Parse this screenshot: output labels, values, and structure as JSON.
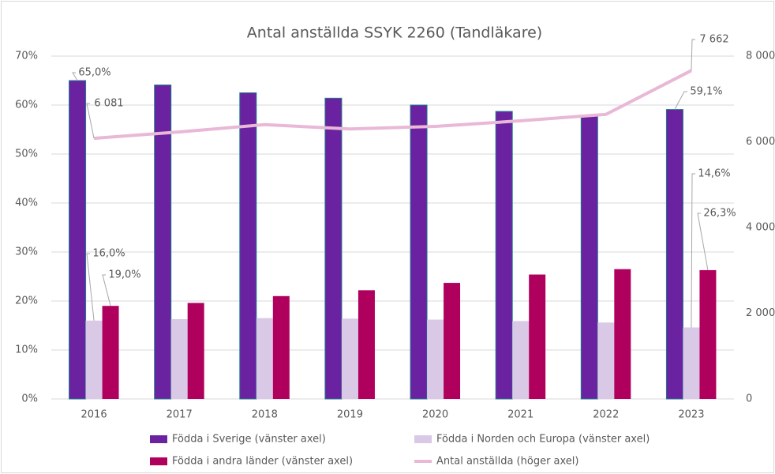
{
  "chart_data": {
    "type": "bar",
    "title": "Antal anställda SSYK 2260 (Tandläkare)",
    "categories": [
      "2016",
      "2017",
      "2018",
      "2019",
      "2020",
      "2021",
      "2022",
      "2023"
    ],
    "series": [
      {
        "name": "Födda i Sverige (vänster axel)",
        "color": "#6a22a0",
        "values": [
          65.0,
          64.1,
          62.5,
          61.4,
          60.0,
          58.7,
          57.9,
          59.1
        ],
        "value_labels": [
          "65,0%",
          null,
          null,
          null,
          null,
          null,
          null,
          "59,1%"
        ]
      },
      {
        "name": "Födda i Norden och Europa (vänster axel)",
        "color": "#d9c8e6",
        "values": [
          16.0,
          16.3,
          16.5,
          16.4,
          16.2,
          15.9,
          15.6,
          14.6
        ],
        "value_labels": [
          "16,0%",
          null,
          null,
          null,
          null,
          null,
          null,
          "14,6%"
        ]
      },
      {
        "name": "Födda i andra länder (vänster axel)",
        "color": "#b0005e",
        "values": [
          19.0,
          19.6,
          21.0,
          22.2,
          23.7,
          25.4,
          26.5,
          26.3
        ],
        "value_labels": [
          "19,0%",
          null,
          null,
          null,
          null,
          null,
          null,
          "26,3%"
        ]
      },
      {
        "name": "Antal anställda (höger axel)",
        "type": "line",
        "axis": "y2",
        "color": "#e8b8d6",
        "values": [
          6081,
          6230,
          6400,
          6300,
          6360,
          6490,
          6640,
          7662
        ],
        "value_labels": [
          "6 081",
          null,
          null,
          null,
          null,
          null,
          null,
          "7 662"
        ]
      }
    ],
    "ylim": [
      0,
      70
    ],
    "yticks": [
      {
        "value": 0,
        "label": "0%"
      },
      {
        "value": 10,
        "label": "10%"
      },
      {
        "value": 20,
        "label": "20%"
      },
      {
        "value": 30,
        "label": "30%"
      },
      {
        "value": 40,
        "label": "40%"
      },
      {
        "value": 50,
        "label": "50%"
      },
      {
        "value": 60,
        "label": "60%"
      },
      {
        "value": 70,
        "label": "70%"
      }
    ],
    "y2lim": [
      0,
      8000
    ],
    "y2ticks": [
      0,
      {
        "value": 2000,
        "label": "2 000"
      },
      {
        "value": 4000,
        "label": "4 000"
      },
      {
        "value": 6000,
        "label": "6 000"
      },
      {
        "value": 8000,
        "label": "8 000"
      }
    ],
    "grid": true
  }
}
